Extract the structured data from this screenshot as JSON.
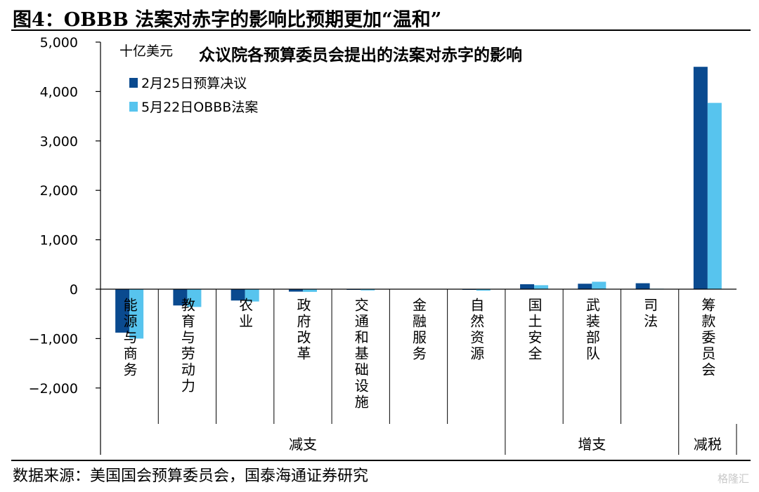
{
  "figure_title": "图4：OBBB 法案对赤字的影响比预期更加“温和”",
  "source_note": "数据来源：美国国会预算委员会，国泰海通证券研究",
  "watermark_text": "格隆汇",
  "chart_data": {
    "type": "bar",
    "title": "众议院各预算委员会提出的法案对赤字的影响",
    "ylabel": "十亿美元",
    "xlabel": "",
    "ylim": [
      -2000,
      5000
    ],
    "yticks": [
      5000,
      4000,
      3000,
      2000,
      1000,
      0,
      -1000,
      -2000
    ],
    "ytick_labels": [
      "5,000",
      "4,000",
      "3,000",
      "2,000",
      "1,000",
      "0",
      "−1,000",
      "−2,000"
    ],
    "categories": [
      "能源与商务",
      "教育与劳动力",
      "农业",
      "政府改革",
      "交通和基础设施",
      "金融服务",
      "自然资源",
      "国土安全",
      "武装部队",
      "司法",
      "筹款委员会"
    ],
    "series": [
      {
        "name": "2月25日预算决议",
        "color": "#0a4a8f",
        "values": [
          -880,
          -330,
          -230,
          -50,
          -10,
          0,
          -5,
          100,
          110,
          120,
          4500
        ]
      },
      {
        "name": "5月22日OBBB法案",
        "color": "#57c4ee",
        "values": [
          -1000,
          -360,
          -250,
          -55,
          -25,
          0,
          -30,
          80,
          150,
          10,
          3770
        ]
      }
    ],
    "groups": [
      {
        "label": "减支",
        "start": 0,
        "end": 6
      },
      {
        "label": "增支",
        "start": 7,
        "end": 9
      },
      {
        "label": "减税",
        "start": 10,
        "end": 10
      }
    ],
    "legend_position": "top-left",
    "grid": false
  }
}
